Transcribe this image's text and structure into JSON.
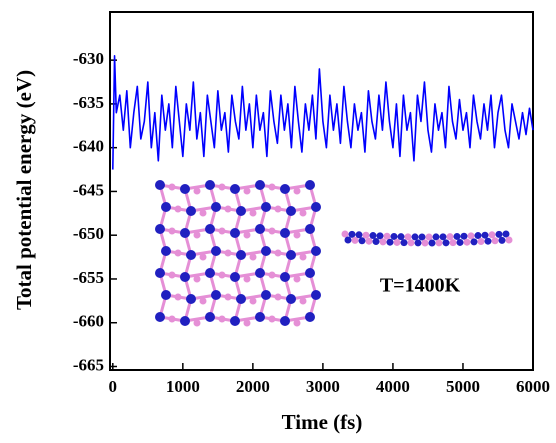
{
  "chart_data": {
    "type": "line",
    "xlabel": "Time (fs)",
    "ylabel": "Total potential energy (eV)",
    "annotation": "T=1400K",
    "xlim": [
      -40,
      6000
    ],
    "ylim": [
      -665.4,
      -624.5
    ],
    "xticks": [
      0,
      1000,
      2000,
      3000,
      4000,
      5000,
      6000
    ],
    "yticks": [
      -630,
      -635,
      -640,
      -645,
      -650,
      -655,
      -660,
      -665
    ],
    "x": [
      0,
      25,
      50,
      100,
      150,
      200,
      250,
      300,
      350,
      400,
      450,
      500,
      550,
      600,
      650,
      700,
      750,
      800,
      850,
      900,
      950,
      1000,
      1050,
      1100,
      1150,
      1200,
      1250,
      1300,
      1350,
      1400,
      1450,
      1500,
      1550,
      1600,
      1650,
      1700,
      1750,
      1800,
      1850,
      1900,
      1950,
      2000,
      2050,
      2100,
      2150,
      2200,
      2250,
      2300,
      2350,
      2400,
      2450,
      2500,
      2550,
      2600,
      2650,
      2700,
      2750,
      2800,
      2850,
      2900,
      2950,
      3000,
      3050,
      3100,
      3150,
      3200,
      3250,
      3300,
      3350,
      3400,
      3450,
      3500,
      3550,
      3600,
      3650,
      3700,
      3750,
      3800,
      3850,
      3900,
      3950,
      4000,
      4050,
      4100,
      4150,
      4200,
      4250,
      4300,
      4350,
      4400,
      4450,
      4500,
      4550,
      4600,
      4650,
      4700,
      4750,
      4800,
      4850,
      4900,
      4950,
      5000,
      5050,
      5100,
      5150,
      5200,
      5250,
      5300,
      5350,
      5400,
      5450,
      5500,
      5550,
      5600,
      5650,
      5700,
      5750,
      5800,
      5850,
      5900,
      5950,
      6000
    ],
    "series": [
      {
        "color": "#0000ff",
        "values": [
          -642.5,
          -629.5,
          -636,
          -634,
          -638,
          -633.5,
          -640,
          -636,
          -633,
          -639,
          -637,
          -632.5,
          -640,
          -636,
          -641.5,
          -634,
          -638,
          -635,
          -640,
          -633,
          -637,
          -641,
          -635,
          -638,
          -632.5,
          -639,
          -636,
          -641,
          -634,
          -637,
          -640,
          -633.5,
          -638,
          -636,
          -640.5,
          -634,
          -637,
          -639,
          -633,
          -638,
          -635,
          -640,
          -634,
          -638,
          -636,
          -641,
          -633.5,
          -637,
          -639.5,
          -634,
          -638,
          -635,
          -640,
          -633,
          -637,
          -640.5,
          -635,
          -638,
          -634,
          -639,
          -631,
          -637,
          -640,
          -634,
          -638,
          -635,
          -639.5,
          -633,
          -637,
          -640,
          -635,
          -638,
          -636,
          -640.5,
          -633.5,
          -637,
          -639,
          -634,
          -638,
          -632.5,
          -637,
          -640,
          -635,
          -641,
          -634,
          -638,
          -636,
          -641.5,
          -634,
          -637,
          -632.5,
          -638,
          -640.5,
          -635,
          -638,
          -636,
          -640,
          -633,
          -637,
          -639,
          -634.5,
          -638,
          -636,
          -640,
          -634,
          -637,
          -639,
          -635,
          -638,
          -634,
          -640,
          -636,
          -634,
          -638,
          -640,
          -635,
          -637,
          -639,
          -636,
          -638.5,
          -635.5,
          -638
        ]
      }
    ]
  }
}
